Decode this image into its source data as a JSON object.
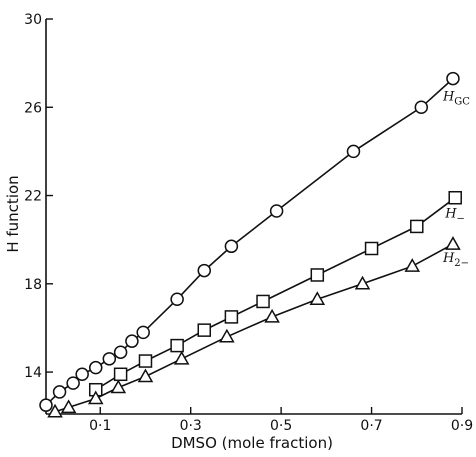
{
  "chart_data": {
    "type": "line",
    "xlabel": "DMSO (mole fraction)",
    "ylabel": "H function",
    "xlim": [
      -0.02,
      0.9
    ],
    "ylim": [
      12.1,
      30
    ],
    "x_ticks": [
      0.1,
      0.3,
      0.5,
      0.7,
      0.9
    ],
    "x_tick_labels": [
      "0·1",
      "0·3",
      "0·5",
      "0·7",
      "0·9"
    ],
    "y_ticks": [
      14,
      18,
      22,
      26,
      30
    ],
    "y_tick_labels": [
      "14",
      "18",
      "22",
      "26",
      "30"
    ],
    "series": [
      {
        "name": "H_GC",
        "label_main": "H",
        "label_sub": "GC",
        "marker": "circle",
        "x": [
          -0.02,
          0.01,
          0.04,
          0.06,
          0.09,
          0.12,
          0.145,
          0.17,
          0.195,
          0.27,
          0.33,
          0.39,
          0.49,
          0.66,
          0.81,
          0.88
        ],
        "y": [
          12.5,
          13.1,
          13.5,
          13.9,
          14.2,
          14.6,
          14.9,
          15.4,
          15.8,
          17.3,
          18.6,
          19.7,
          21.3,
          24.0,
          26.0,
          27.3
        ]
      },
      {
        "name": "H_-",
        "label_main": "H",
        "label_sub": "−",
        "marker": "square",
        "x": [
          0.09,
          0.145,
          0.2,
          0.27,
          0.33,
          0.39,
          0.46,
          0.58,
          0.7,
          0.8,
          0.885
        ],
        "y": [
          13.2,
          13.9,
          14.5,
          15.2,
          15.9,
          16.5,
          17.2,
          18.4,
          19.6,
          20.6,
          21.9
        ]
      },
      {
        "name": "H_2-",
        "label_main": "H",
        "label_sub": "2−",
        "marker": "triangle",
        "x": [
          0.0,
          0.03,
          0.09,
          0.14,
          0.2,
          0.28,
          0.38,
          0.48,
          0.58,
          0.68,
          0.79,
          0.88
        ],
        "y": [
          12.2,
          12.4,
          12.8,
          13.3,
          13.8,
          14.6,
          15.6,
          16.5,
          17.3,
          18.0,
          18.8,
          19.8
        ]
      }
    ]
  }
}
